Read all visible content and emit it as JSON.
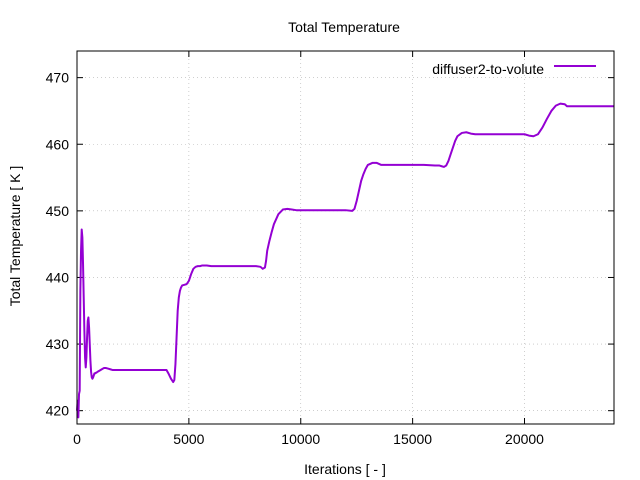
{
  "chart_data": {
    "type": "line",
    "title": "Total Temperature",
    "xlabel": "Iterations [ - ]",
    "ylabel": "Total Temperature [ K ]",
    "xlim": [
      0,
      24000
    ],
    "ylim": [
      418,
      474
    ],
    "xticks": [
      0,
      5000,
      10000,
      15000,
      20000
    ],
    "yticks": [
      420,
      430,
      440,
      450,
      460,
      470
    ],
    "grid": true,
    "legend_position": "top-right",
    "series": [
      {
        "name": "diffuser2-to-volute",
        "color": "#9400d3",
        "x": [
          0,
          30,
          60,
          90,
          120,
          150,
          180,
          210,
          240,
          270,
          300,
          330,
          360,
          390,
          420,
          450,
          480,
          510,
          540,
          570,
          600,
          630,
          660,
          690,
          720,
          750,
          780,
          810,
          840,
          870,
          900,
          950,
          1000,
          1100,
          1200,
          1300,
          1400,
          1500,
          1600,
          1700,
          1800,
          2000,
          2500,
          3000,
          3500,
          4000,
          4100,
          4200,
          4300,
          4350,
          4400,
          4450,
          4500,
          4550,
          4600,
          4650,
          4700,
          4800,
          4900,
          5000,
          5100,
          5200,
          5300,
          5400,
          5500,
          5600,
          5800,
          6000,
          6500,
          7000,
          7500,
          8000,
          8200,
          8300,
          8400,
          8450,
          8500,
          8600,
          8700,
          8800,
          9000,
          9200,
          9400,
          9600,
          9800,
          10000,
          10500,
          11000,
          11500,
          12000,
          12300,
          12400,
          12500,
          12600,
          12700,
          12800,
          12900,
          13000,
          13200,
          13400,
          13600,
          14000,
          14500,
          15000,
          15500,
          16000,
          16200,
          16300,
          16400,
          16500,
          16600,
          16700,
          16800,
          16900,
          17000,
          17200,
          17400,
          17600,
          17800,
          18000,
          18500,
          19000,
          19500,
          20000,
          20200,
          20400,
          20600,
          20800,
          21000,
          21200,
          21400,
          21600,
          21800,
          21900,
          22000,
          22500,
          23000,
          23500,
          24000
        ],
        "y": [
          420,
          421.5,
          419,
          422.5,
          423,
          438,
          444,
          447.2,
          446,
          442,
          437,
          432,
          428,
          426.5,
          428,
          431,
          433.5,
          434,
          432.5,
          430,
          427.5,
          425.8,
          425,
          424.8,
          425,
          425.3,
          425.6,
          425.6,
          425.7,
          425.7,
          425.8,
          425.9,
          426,
          426.2,
          426.4,
          426.4,
          426.3,
          426.2,
          426.1,
          426.1,
          426.1,
          426.1,
          426.1,
          426.1,
          426.1,
          426.1,
          425.5,
          424.8,
          424.3,
          424.6,
          427,
          431,
          435,
          437,
          438,
          438.5,
          438.8,
          438.9,
          439,
          439.5,
          440.5,
          441.3,
          441.6,
          441.7,
          441.7,
          441.8,
          441.8,
          441.7,
          441.7,
          441.7,
          441.7,
          441.7,
          441.6,
          441.3,
          441.5,
          442.5,
          444,
          445.5,
          446.8,
          448,
          449.5,
          450.2,
          450.3,
          450.2,
          450.1,
          450.1,
          450.1,
          450.1,
          450.1,
          450.1,
          450,
          450.3,
          451.5,
          453,
          454.5,
          455.5,
          456.3,
          456.9,
          457.2,
          457.2,
          456.9,
          456.9,
          456.9,
          456.9,
          456.9,
          456.8,
          456.8,
          456.7,
          456.6,
          456.8,
          457.5,
          458.5,
          459.5,
          460.5,
          461.2,
          461.7,
          461.8,
          461.6,
          461.5,
          461.5,
          461.5,
          461.5,
          461.5,
          461.5,
          461.3,
          461.2,
          461.5,
          462.5,
          463.8,
          465,
          465.8,
          466.1,
          466,
          465.7,
          465.7,
          465.7,
          465.7,
          465.7,
          465.7
        ]
      }
    ]
  }
}
